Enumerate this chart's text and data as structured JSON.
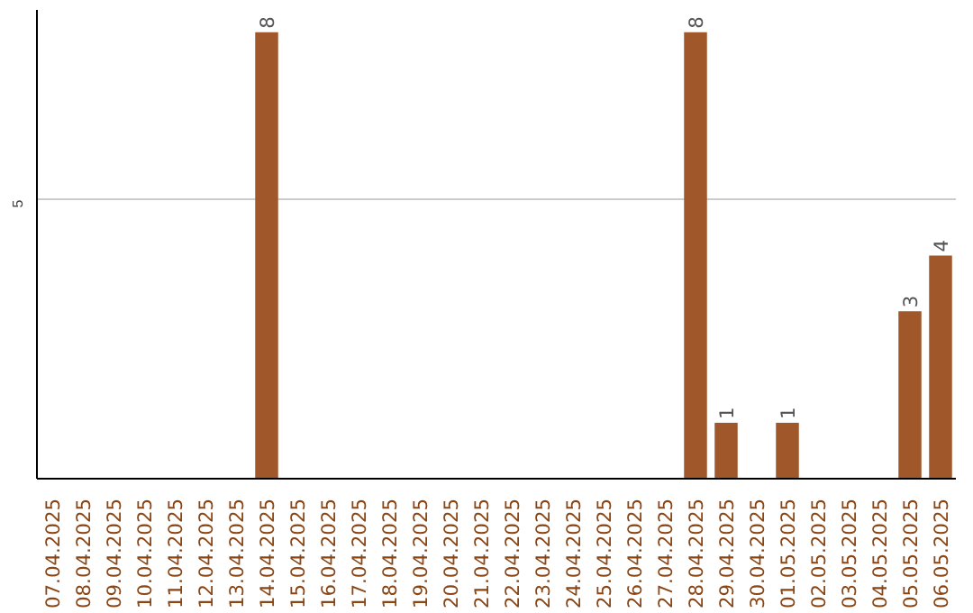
{
  "chart_data": {
    "type": "bar",
    "categories": [
      "07.04.2025",
      "08.04.2025",
      "09.04.2025",
      "10.04.2025",
      "11.04.2025",
      "12.04.2025",
      "13.04.2025",
      "14.04.2025",
      "15.04.2025",
      "16.04.2025",
      "17.04.2025",
      "18.04.2025",
      "19.04.2025",
      "20.04.2025",
      "21.04.2025",
      "22.04.2025",
      "23.04.2025",
      "24.04.2025",
      "25.04.2025",
      "26.04.2025",
      "27.04.2025",
      "28.04.2025",
      "29.04.2025",
      "30.04.2025",
      "01.05.2025",
      "02.05.2025",
      "03.05.2025",
      "04.05.2025",
      "05.05.2025",
      "06.05.2025"
    ],
    "values": [
      0,
      0,
      0,
      0,
      0,
      0,
      0,
      8,
      0,
      0,
      0,
      0,
      0,
      0,
      0,
      0,
      0,
      0,
      0,
      0,
      0,
      8,
      1,
      0,
      1,
      0,
      0,
      0,
      3,
      4
    ],
    "color": "#a0582b",
    "ylim": [
      0,
      8.4
    ],
    "yticks": [
      5
    ],
    "grid": "y",
    "value_labels": [
      null,
      null,
      null,
      null,
      null,
      null,
      null,
      "8",
      null,
      null,
      null,
      null,
      null,
      null,
      null,
      null,
      null,
      null,
      null,
      null,
      null,
      "8",
      "1",
      null,
      "1",
      null,
      null,
      null,
      "3",
      "4"
    ]
  }
}
